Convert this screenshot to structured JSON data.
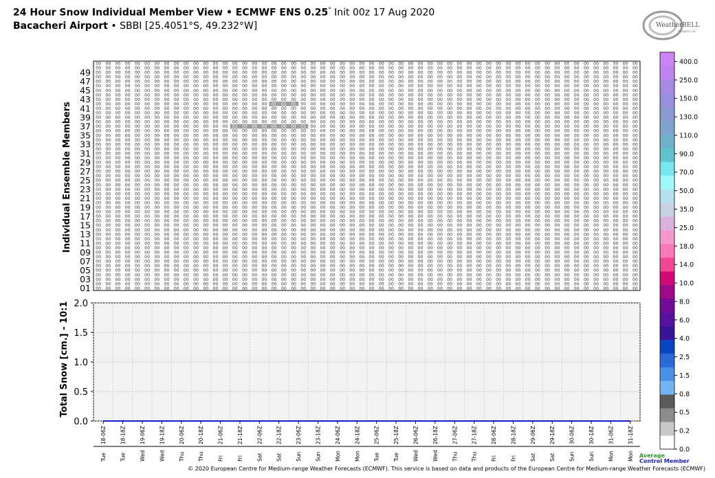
{
  "title": {
    "line1_bold": "24 Hour Snow Individual Member View • ECMWF ENS 0.25",
    "line1_deg": "°",
    "line1_rest": " Init 00z 17 Aug 2020",
    "line2_bold": "Bacacheri Airport",
    "line2_rest": " • SBBI [25.4051°S, 49.232°W]"
  },
  "logo": {
    "text": "WeatherBELL",
    "subtext": "Analytics LLC"
  },
  "footer": "© 2020 European Centre for Medium-range Weather Forecasts (ECMWF). This service is based on data and products of the European Centre for Medium-range Weather Forecasts (ECMWF)",
  "legend": {
    "average": "Average",
    "control": "Control Member"
  },
  "colors": {
    "average_line": "#2a9d2a",
    "control_line": "#1c1cc8",
    "bottom_panel_bg": "#f2f2f2"
  },
  "chart_data": [
    {
      "type": "heatmap",
      "ylabel": "Individual Ensemble Members",
      "y_tick_labels": [
        "01",
        "03",
        "05",
        "07",
        "09",
        "11",
        "13",
        "15",
        "17",
        "19",
        "21",
        "23",
        "25",
        "27",
        "29",
        "31",
        "33",
        "35",
        "37",
        "39",
        "41",
        "43",
        "45",
        "47",
        "49"
      ],
      "members": 51,
      "columns": 56,
      "cell_value": "00",
      "highlighted_cells": [
        {
          "member": 37,
          "columns": [
            14,
            15,
            16,
            17,
            18,
            19,
            20,
            21
          ],
          "labels": [
            "01",
            "03",
            "06",
            "06",
            "05",
            "06",
            "04",
            "01"
          ]
        },
        {
          "member": 42,
          "columns": [
            18,
            19,
            20
          ],
          "labels": [
            "01",
            "01",
            "01"
          ]
        }
      ]
    },
    {
      "type": "line",
      "ylabel": "Total Snow [cm.] - 10:1",
      "ylim": [
        0.0,
        2.0
      ],
      "y_ticks": [
        "0.0",
        "0.5",
        "1.0",
        "1.5",
        "2.0"
      ],
      "grid": true,
      "x": [
        "Tue 18-06Z",
        "Tue 18-18Z",
        "Wed 19-06Z",
        "Wed 19-18Z",
        "Thu 20-06Z",
        "Thu 20-18Z",
        "Fri 21-06Z",
        "Fri 21-18Z",
        "Sat 22-06Z",
        "Sat 22-18Z",
        "Sun 23-06Z",
        "Sun 23-18Z",
        "Mon 24-06Z",
        "Mon 24-18Z",
        "Tue 25-06Z",
        "Tue 25-18Z",
        "Wed 26-06Z",
        "Wed 26-18Z",
        "Thu 27-06Z",
        "Thu 27-18Z",
        "Fri 28-06Z",
        "Fri 28-18Z",
        "Sat 29-06Z",
        "Sat 29-18Z",
        "Sun 30-06Z",
        "Sun 30-18Z",
        "Mon 31-06Z",
        "Mon 31-18Z"
      ],
      "series": [
        {
          "name": "Average",
          "values": [
            0,
            0,
            0,
            0,
            0,
            0,
            0,
            0,
            0,
            0,
            0,
            0,
            0,
            0,
            0,
            0,
            0,
            0,
            0,
            0,
            0,
            0,
            0,
            0,
            0,
            0,
            0,
            0
          ]
        },
        {
          "name": "Control Member",
          "values": [
            0,
            0,
            0,
            0,
            0,
            0,
            0,
            0,
            0,
            0,
            0,
            0,
            0,
            0,
            0,
            0,
            0,
            0,
            0,
            0,
            0,
            0,
            0,
            0,
            0,
            0,
            0,
            0
          ]
        }
      ]
    },
    {
      "type": "colorbar",
      "labels": [
        "0.0",
        "0.2",
        "0.5",
        "0.8",
        "1.5",
        "2.5",
        "4.0",
        "6.0",
        "8.0",
        "10.0",
        "14.0",
        "18.0",
        "25.0",
        "35.0",
        "50.0",
        "70.0",
        "90.0",
        "110.0",
        "130.0",
        "150.0",
        "250.0",
        "400.0"
      ],
      "colors": [
        "#ffffff",
        "#c8c8c8",
        "#8c8c8c",
        "#5a5a5a",
        "#74b4f4",
        "#4a8fe8",
        "#2a6ad8",
        "#0a44c0",
        "#3a1496",
        "#56129e",
        "#700c96",
        "#9c0a84",
        "#d00a78",
        "#f24894",
        "#f878b8",
        "#f39acb",
        "#dcb2dc",
        "#c8d2e4",
        "#b4e2ee",
        "#a0f8f8",
        "#78e6ee",
        "#60c2cc",
        "#70b0c8",
        "#80a4cc",
        "#8c98d0",
        "#9890da",
        "#a88ae4",
        "#bc84ec",
        "#cc86f4"
      ]
    }
  ]
}
